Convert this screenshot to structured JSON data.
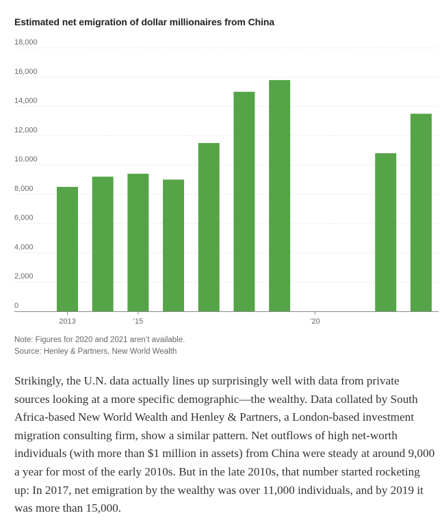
{
  "chart_data": {
    "type": "bar",
    "title": "Estimated net emigration of dollar millionaires from China",
    "categories": [
      2013,
      2014,
      2015,
      2016,
      2017,
      2018,
      2019,
      2020,
      2021,
      2022,
      2023
    ],
    "values": [
      8500,
      9200,
      9400,
      9000,
      11500,
      15000,
      15800,
      null,
      null,
      10800,
      13500
    ],
    "x_tick_labels": [
      {
        "year": 2013,
        "label": "2013"
      },
      {
        "year": 2015,
        "label": "’15"
      },
      {
        "year": 2020,
        "label": "’20"
      }
    ],
    "y_ticks": [
      0,
      2000,
      4000,
      6000,
      8000,
      10000,
      12000,
      14000,
      16000,
      18000
    ],
    "y_tick_labels": [
      "0",
      "2,000",
      "4,000",
      "6,000",
      "8,000",
      "10,000",
      "12,000",
      "14,000",
      "16,000",
      "18,000"
    ],
    "ylim": [
      0,
      18000
    ],
    "xlabel": "",
    "ylabel": "",
    "grid": true,
    "bar_color": "#55a448"
  },
  "notes": {
    "note": "Note: Figures for 2020 and 2021 aren’t available.",
    "source": "Source: Henley & Partners, New World Wealth"
  },
  "article": {
    "paragraph": "Strikingly, the U.N. data actually lines up surprisingly well with data from private sources looking at a more specific demographic—the wealthy. Data collated by South Africa-based New World Wealth and Henley & Partners, a London-based investment migration consulting firm, show a similar pattern. Net outflows of high net-worth individuals (with more than $1 million in assets) from China were steady at around 9,000 a year for most of the early 2010s. But in the late 2010s, that number started rocketing up: In 2017, net emigration by the wealthy was over 11,000 individuals, and by 2019 it was more than 15,000."
  }
}
